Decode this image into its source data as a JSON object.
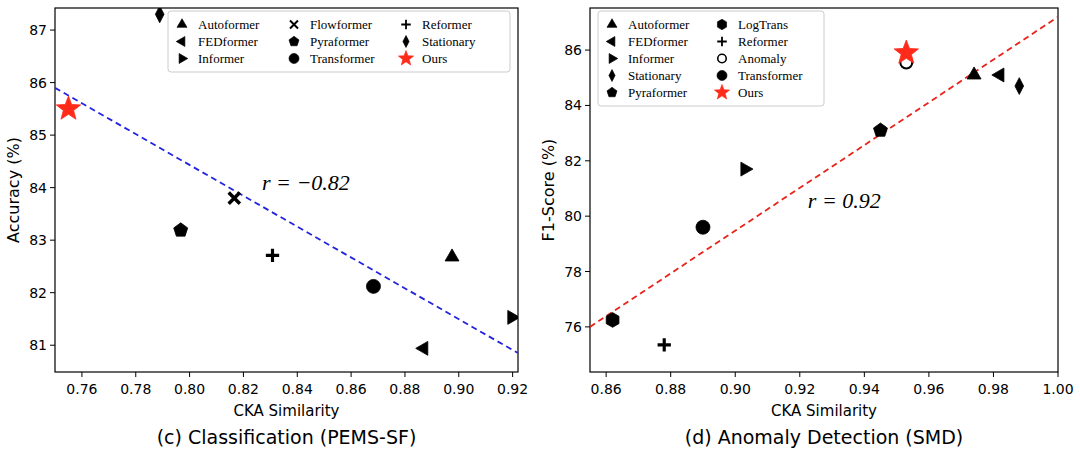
{
  "chart_data": [
    {
      "type": "scatter",
      "title": "(c) Classification (PEMS-SF)",
      "x_label": "CKA Similarity",
      "y_label": "Accuracy (%)",
      "xlim": [
        0.75,
        0.922
      ],
      "ylim": [
        80.49,
        87.42
      ],
      "xticks": [
        0.76,
        0.78,
        {
          "value": 0.8,
          "label": "0.80"
        },
        0.82,
        0.84,
        0.86,
        0.88,
        {
          "value": 0.9,
          "label": "0.90"
        },
        0.92
      ],
      "yticks": [
        81,
        82,
        83,
        84,
        85,
        86,
        87
      ],
      "legend": "upper right",
      "series": [
        {
          "name": "Autoformer",
          "marker": "triangle-up",
          "color": "#000000",
          "x": [
            0.8975
          ],
          "values": [
            82.68
          ]
        },
        {
          "name": "FEDformer",
          "marker": "triangle-left",
          "color": "#000000",
          "x": [
            0.887
          ],
          "values": [
            80.94
          ]
        },
        {
          "name": "Informer",
          "marker": "triangle-right",
          "color": "#000000",
          "x": [
            0.9197
          ],
          "values": [
            81.53
          ]
        },
        {
          "name": "Flowformer",
          "marker": "x",
          "color": "#000000",
          "x": [
            0.8166
          ],
          "values": [
            83.8
          ]
        },
        {
          "name": "Pyraformer",
          "marker": "pentagon",
          "color": "#000000",
          "x": [
            0.7967
          ],
          "values": [
            83.19
          ]
        },
        {
          "name": "Transformer",
          "marker": "circle",
          "color": "#000000",
          "x": [
            0.8683
          ],
          "values": [
            82.12
          ]
        },
        {
          "name": "Reformer",
          "marker": "plus",
          "color": "#000000",
          "x": [
            0.8308
          ],
          "values": [
            82.71
          ]
        },
        {
          "name": "Stationary",
          "marker": "diamond",
          "color": "#000000",
          "x": [
            0.7889
          ],
          "values": [
            87.3
          ]
        },
        {
          "name": "Ours",
          "marker": "star",
          "color": "#ff2a1a",
          "x": [
            0.755
          ],
          "values": [
            85.5
          ]
        }
      ],
      "trend_line": {
        "x": [
          0.75,
          0.922
        ],
        "values": [
          85.9,
          80.85
        ],
        "color": "#2424e0",
        "line_style": "dashed"
      },
      "annotations": [
        {
          "text": "r = −0.82",
          "x": 0.8269,
          "y": 83.96
        }
      ]
    },
    {
      "type": "scatter",
      "title": "(d) Anomaly Detection (SMD)",
      "x_label": "CKA Similarity",
      "y_label": "F1-Score (%)",
      "xlim": [
        0.855,
        1.0
      ],
      "ylim": [
        74.37,
        87.52
      ],
      "xticks": [
        0.86,
        0.88,
        {
          "value": 0.9,
          "label": "0.90"
        },
        0.92,
        0.94,
        0.96,
        0.98,
        {
          "value": 1.0,
          "label": "1.00"
        }
      ],
      "yticks": [
        76,
        78,
        80,
        82,
        84,
        86
      ],
      "legend": "upper left",
      "series": [
        {
          "name": "Autoformer",
          "marker": "triangle-up",
          "color": "#000000",
          "x": [
            0.974
          ],
          "values": [
            85.1
          ]
        },
        {
          "name": "FEDformer",
          "marker": "triangle-left",
          "color": "#000000",
          "x": [
            0.982
          ],
          "values": [
            85.1
          ]
        },
        {
          "name": "Informer",
          "marker": "triangle-right",
          "color": "#000000",
          "x": [
            0.903
          ],
          "values": [
            81.7
          ]
        },
        {
          "name": "Stationary",
          "marker": "diamond",
          "color": "#000000",
          "x": [
            0.988
          ],
          "values": [
            84.7
          ]
        },
        {
          "name": "Pyraformer",
          "marker": "pentagon",
          "color": "#000000",
          "x": [
            0.945
          ],
          "values": [
            83.1
          ]
        },
        {
          "name": "LogTrans",
          "marker": "hexagon",
          "color": "#000000",
          "x": [
            0.862
          ],
          "values": [
            76.25
          ]
        },
        {
          "name": "Reformer",
          "marker": "plus",
          "color": "#000000",
          "x": [
            0.878
          ],
          "values": [
            75.35
          ]
        },
        {
          "name": "Anomaly",
          "marker": "circle-open",
          "color": "#000000",
          "x": [
            0.953
          ],
          "values": [
            85.55
          ]
        },
        {
          "name": "Transformer",
          "marker": "circle",
          "color": "#000000",
          "x": [
            0.89
          ],
          "values": [
            79.6
          ]
        },
        {
          "name": "Ours",
          "marker": "star",
          "color": "#ff2a1a",
          "x": [
            0.953
          ],
          "values": [
            85.9
          ]
        }
      ],
      "trend_line": {
        "x": [
          0.855,
          1.0
        ],
        "values": [
          76.0,
          87.2
        ],
        "color": "#e8241a",
        "line_style": "dashed"
      },
      "annotations": [
        {
          "text": "r = 0.92",
          "x": 0.9225,
          "y": 80.29
        }
      ]
    }
  ]
}
